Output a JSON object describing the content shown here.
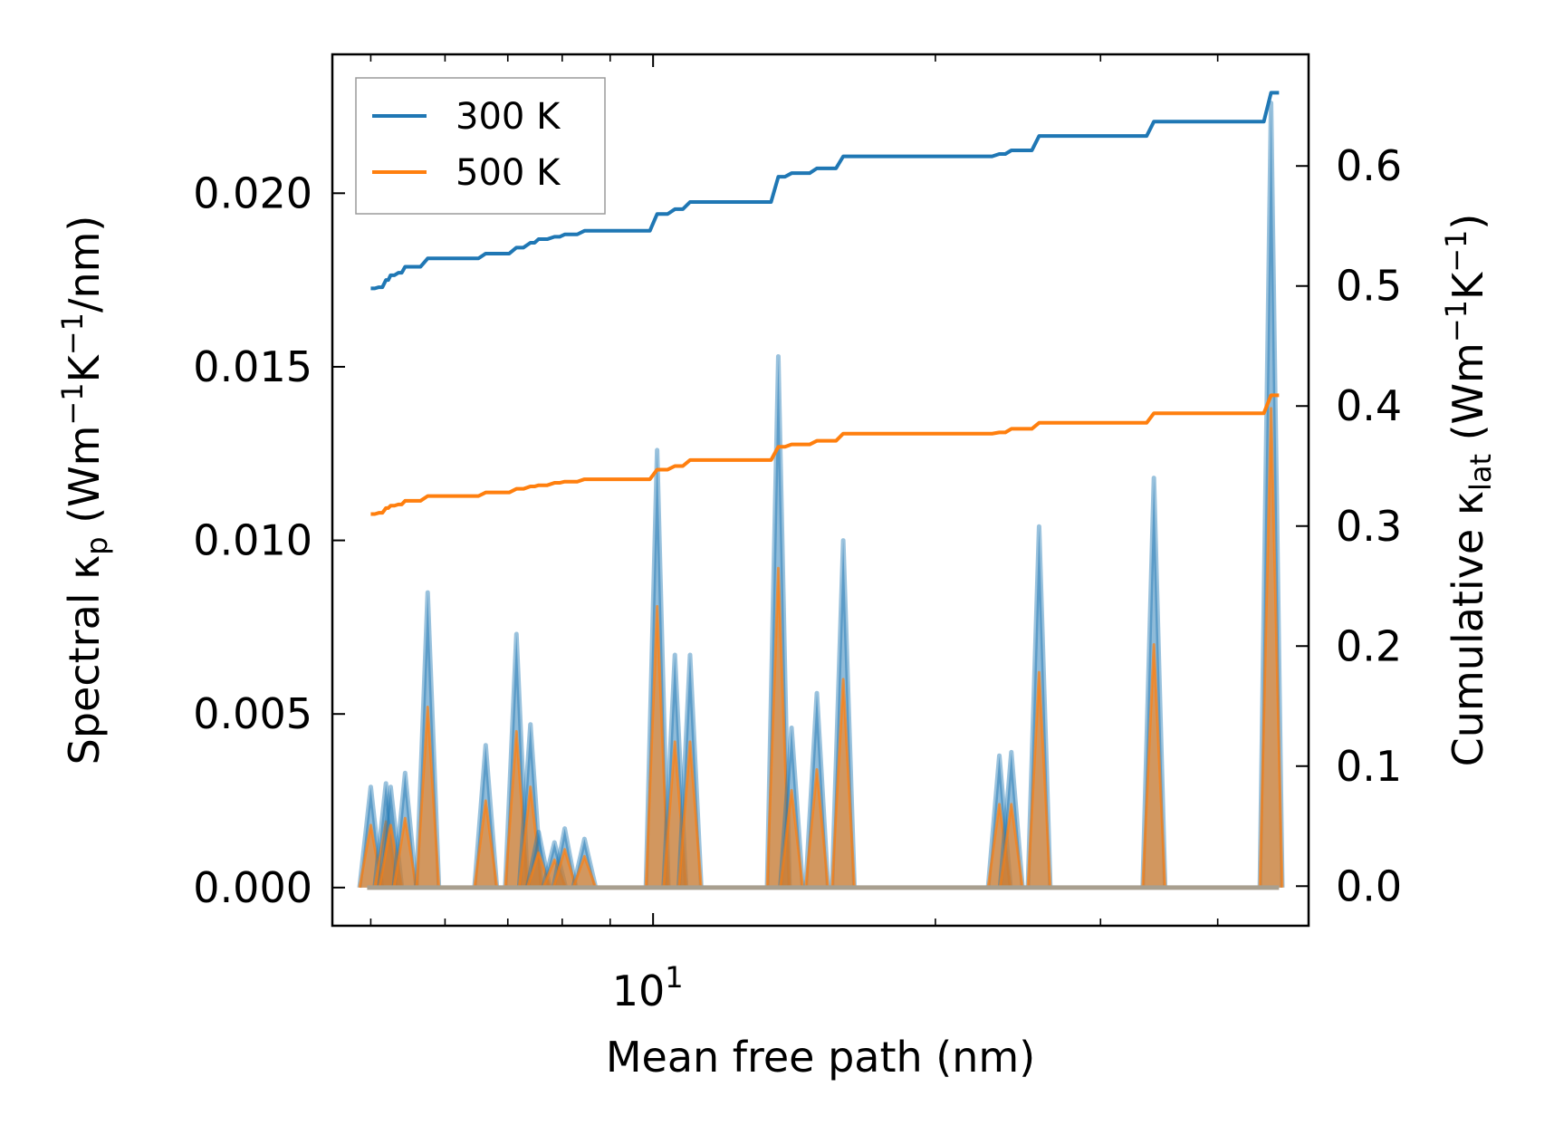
{
  "chart_data": {
    "type": "line",
    "xlabel": "Mean free path (nm)",
    "ylabel_left": {
      "main": "Spectral κ",
      "sub": "p",
      "unit_open": " (Wm",
      "sup1": "−1",
      "unit_mid": "K",
      "sup2": "−1",
      "unit_close": "/nm)"
    },
    "ylabel_right": {
      "main": "Cumulative κ",
      "sub": "lat",
      "unit_open": " (Wm",
      "sup1": "−1",
      "unit_mid": "K",
      "sup2": "−1",
      "unit_close": ")"
    },
    "xscale": "log",
    "xlim": [
      4.55,
      50.0
    ],
    "ylim_left": [
      -0.0011,
      0.024
    ],
    "ylim_right": [
      -0.033,
      0.693
    ],
    "x_ticks": [
      {
        "value": 10,
        "base": "10",
        "exp": "1"
      }
    ],
    "y_left_ticks": [
      {
        "value": 0.0,
        "label": "0.000"
      },
      {
        "value": 0.005,
        "label": "0.005"
      },
      {
        "value": 0.01,
        "label": "0.010"
      },
      {
        "value": 0.015,
        "label": "0.015"
      },
      {
        "value": 0.02,
        "label": "0.020"
      }
    ],
    "y_right_ticks": [
      {
        "value": 0.0,
        "label": "0.0"
      },
      {
        "value": 0.1,
        "label": "0.1"
      },
      {
        "value": 0.2,
        "label": "0.2"
      },
      {
        "value": 0.3,
        "label": "0.3"
      },
      {
        "value": 0.4,
        "label": "0.4"
      },
      {
        "value": 0.5,
        "label": "0.5"
      },
      {
        "value": 0.6,
        "label": "0.6"
      }
    ],
    "legend": {
      "location": "upper left",
      "entries": [
        "300 K",
        "500 K"
      ]
    },
    "colors": {
      "300 K": "#1f77b4",
      "500 K": "#ff7f0e",
      "fill": "#a89f8f"
    },
    "spectral_peaks": [
      {
        "x": 5.0,
        "k300": 0.0029,
        "k500": 0.0018
      },
      {
        "x": 5.19,
        "k300": 0.003,
        "k500": 0.0019
      },
      {
        "x": 5.25,
        "k300": 0.0029,
        "k500": 0.0018
      },
      {
        "x": 5.44,
        "k300": 0.0033,
        "k500": 0.002
      },
      {
        "x": 5.75,
        "k300": 0.0085,
        "k500": 0.0052
      },
      {
        "x": 6.63,
        "k300": 0.0041,
        "k500": 0.0025
      },
      {
        "x": 7.15,
        "k300": 0.0073,
        "k500": 0.0045
      },
      {
        "x": 7.4,
        "k300": 0.0047,
        "k500": 0.0029
      },
      {
        "x": 7.55,
        "k300": 0.0016,
        "k500": 0.001
      },
      {
        "x": 7.85,
        "k300": 0.0013,
        "k500": 0.0008
      },
      {
        "x": 8.05,
        "k300": 0.0017,
        "k500": 0.0011
      },
      {
        "x": 8.45,
        "k300": 0.0014,
        "k500": 0.0009
      },
      {
        "x": 10.1,
        "k300": 0.0126,
        "k500": 0.0081
      },
      {
        "x": 10.55,
        "k300": 0.0067,
        "k500": 0.0042
      },
      {
        "x": 10.95,
        "k300": 0.0067,
        "k500": 0.0042
      },
      {
        "x": 13.6,
        "k300": 0.0153,
        "k500": 0.0092
      },
      {
        "x": 14.05,
        "k300": 0.0046,
        "k500": 0.0028
      },
      {
        "x": 14.95,
        "k300": 0.0056,
        "k500": 0.0034
      },
      {
        "x": 15.95,
        "k300": 0.01,
        "k500": 0.006
      },
      {
        "x": 23.4,
        "k300": 0.0038,
        "k500": 0.0024
      },
      {
        "x": 24.1,
        "k300": 0.0039,
        "k500": 0.0024
      },
      {
        "x": 25.8,
        "k300": 0.0104,
        "k500": 0.0062
      },
      {
        "x": 34.2,
        "k300": 0.0118,
        "k500": 0.007
      },
      {
        "x": 45.6,
        "k300": 0.0226,
        "k500": 0.0138
      }
    ],
    "series": [
      {
        "name": "300 K",
        "axis": "right",
        "x": [
          5.0,
          5.1,
          5.19,
          5.25,
          5.35,
          5.44,
          5.75,
          6.63,
          7.15,
          7.4,
          7.55,
          7.85,
          8.05,
          8.45,
          10.1,
          10.55,
          10.95,
          13.6,
          14.05,
          14.95,
          15.95,
          23.4,
          24.1,
          25.8,
          34.2,
          45.6,
          46.5
        ],
        "y": [
          0.498,
          0.499,
          0.505,
          0.509,
          0.511,
          0.516,
          0.523,
          0.527,
          0.532,
          0.536,
          0.539,
          0.541,
          0.543,
          0.546,
          0.56,
          0.564,
          0.57,
          0.591,
          0.594,
          0.598,
          0.608,
          0.61,
          0.613,
          0.625,
          0.637,
          0.661,
          0.661
        ]
      },
      {
        "name": "500 K",
        "axis": "right",
        "x": [
          5.0,
          5.1,
          5.19,
          5.25,
          5.35,
          5.44,
          5.75,
          6.63,
          7.15,
          7.4,
          7.55,
          7.85,
          8.05,
          8.45,
          10.1,
          10.55,
          10.95,
          13.6,
          14.05,
          14.95,
          15.95,
          23.4,
          24.1,
          25.8,
          34.2,
          45.6,
          46.5
        ],
        "y": [
          0.31,
          0.311,
          0.315,
          0.317,
          0.318,
          0.321,
          0.325,
          0.328,
          0.331,
          0.333,
          0.334,
          0.336,
          0.337,
          0.339,
          0.347,
          0.35,
          0.355,
          0.366,
          0.368,
          0.371,
          0.377,
          0.378,
          0.381,
          0.386,
          0.394,
          0.409,
          0.409
        ]
      }
    ]
  }
}
